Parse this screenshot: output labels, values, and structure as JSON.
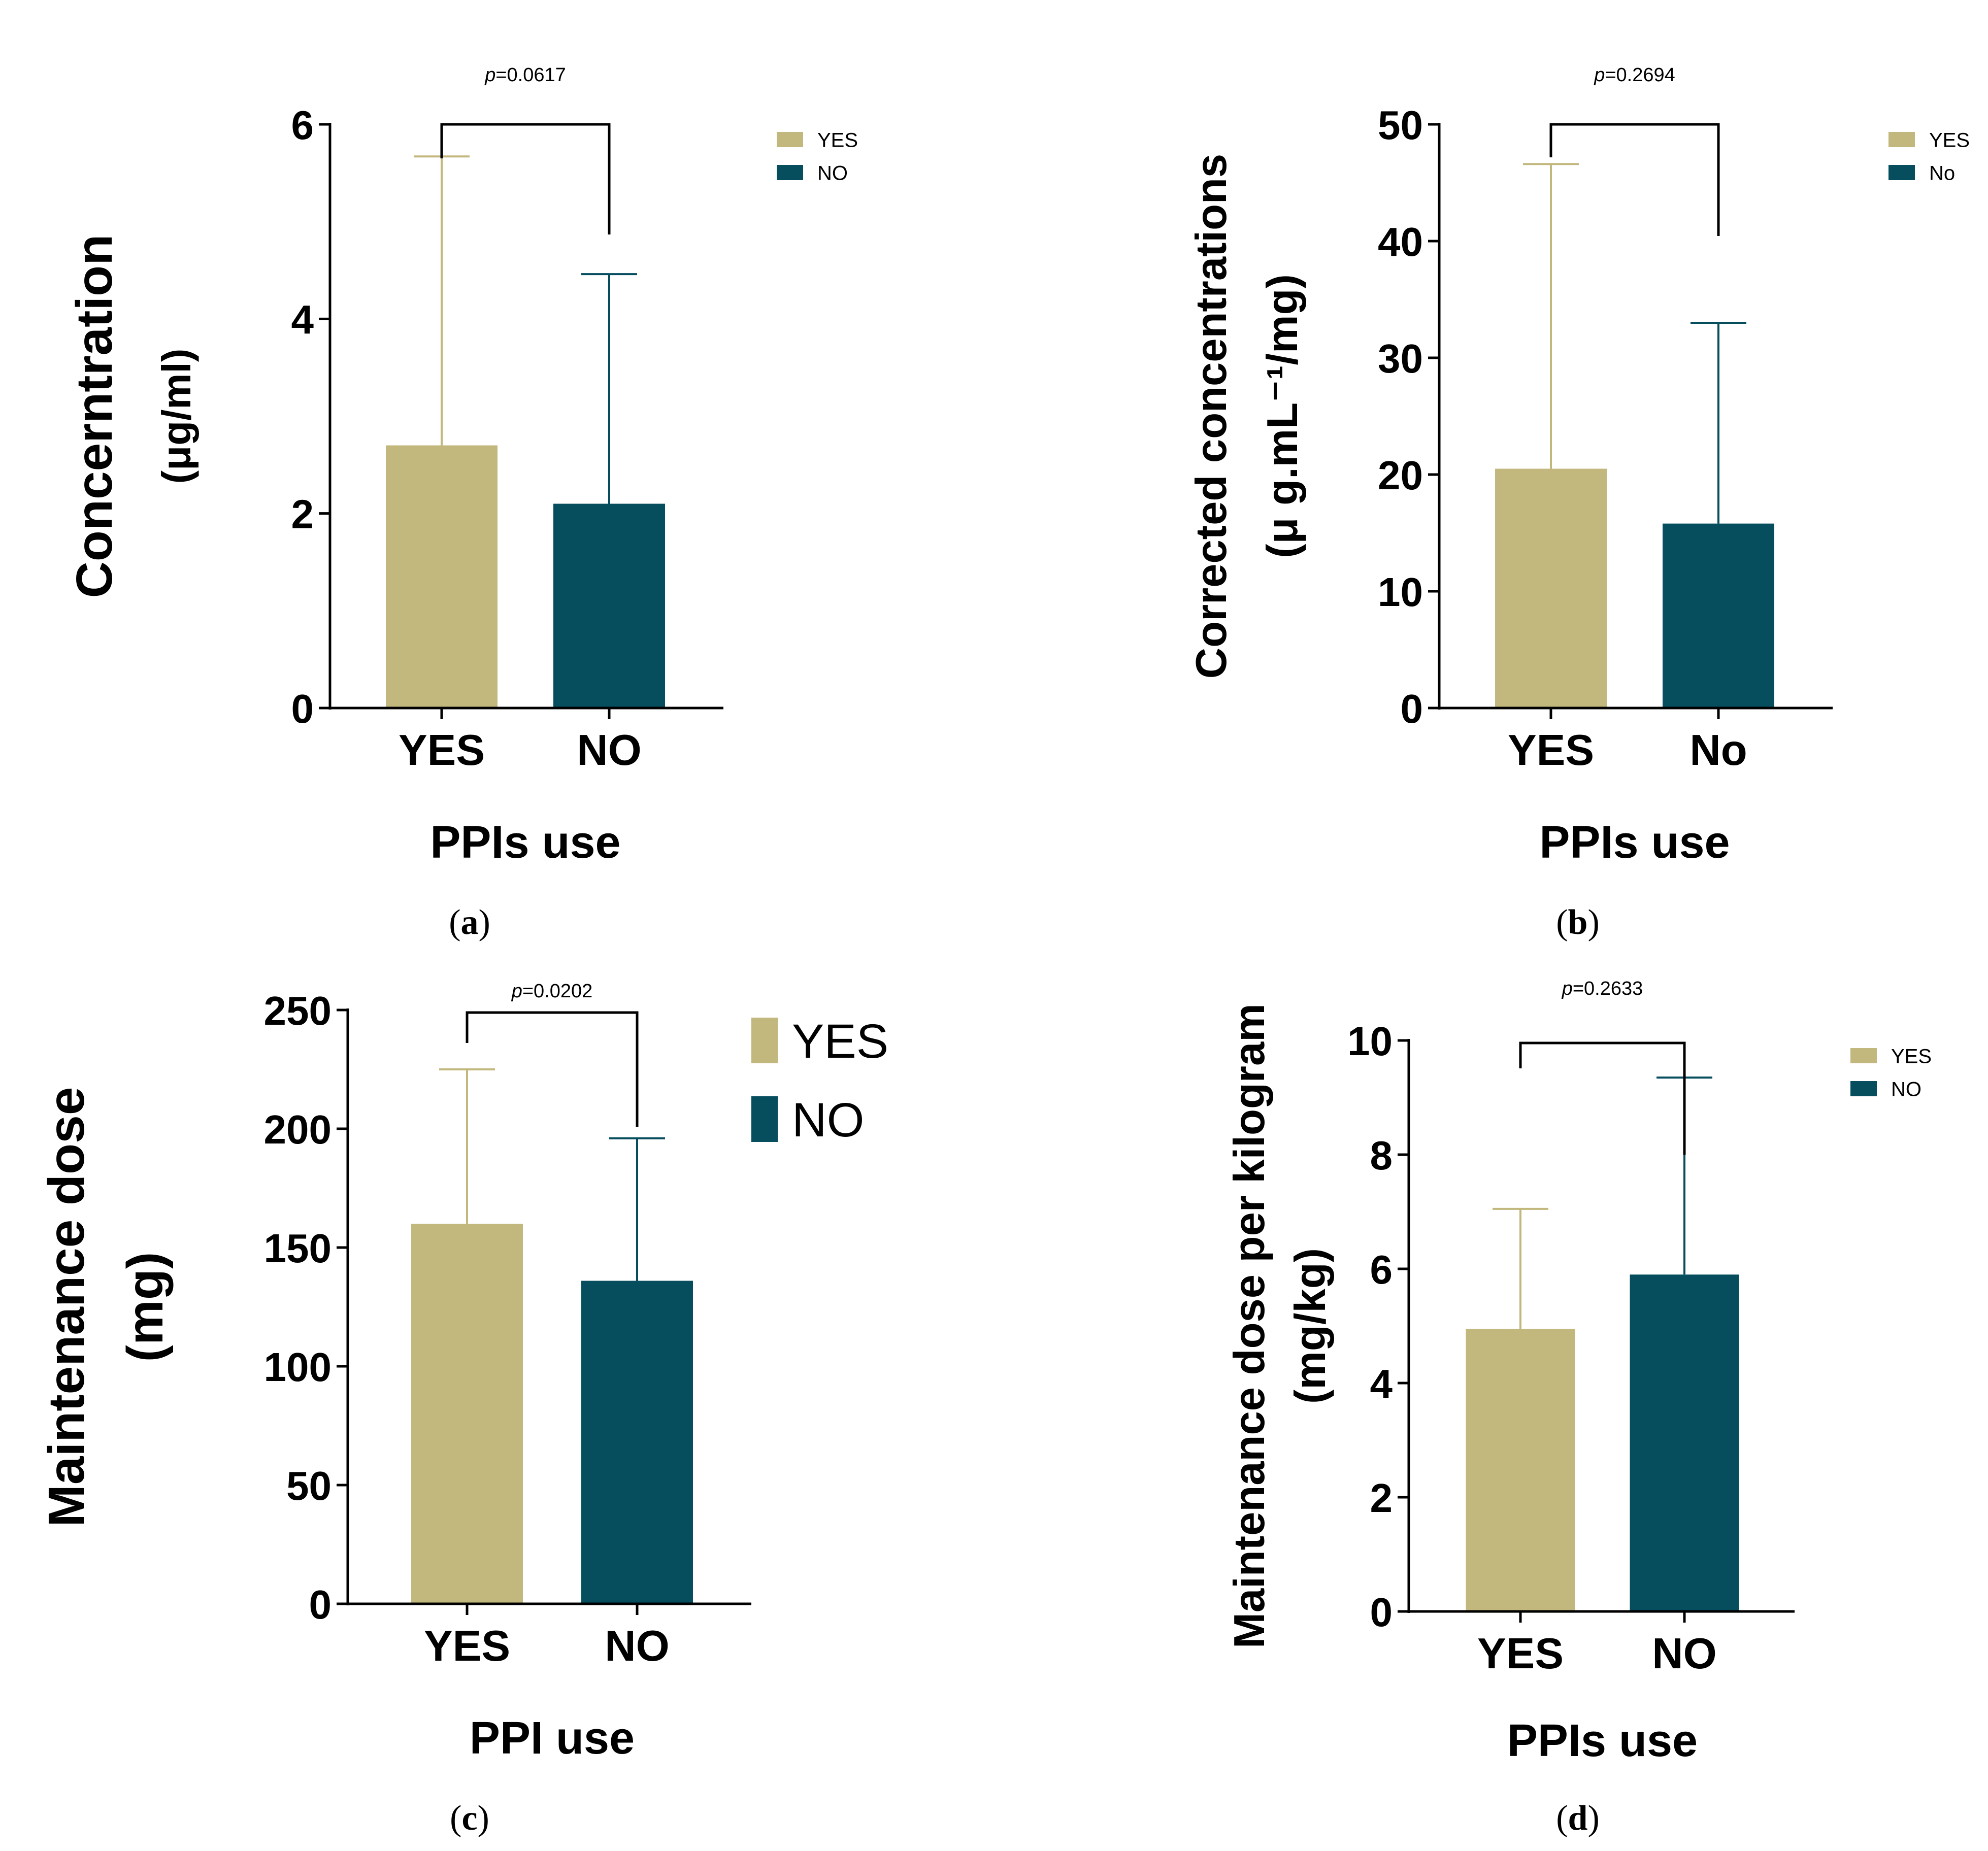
{
  "colors": {
    "yes": "#c2b77d",
    "no": "#064d5e",
    "axis": "#000000"
  },
  "chart_data": [
    {
      "id": "a",
      "type": "bar",
      "caption_label": "a",
      "title": "",
      "categories": [
        "YES",
        "NO"
      ],
      "values": [
        2.7,
        2.1
      ],
      "error_upper": [
        5.67,
        4.46
      ],
      "ylim": [
        0,
        6
      ],
      "yticks": [
        0,
        2,
        4,
        6
      ],
      "ytick_labels": [
        "0",
        "2",
        "4",
        "6"
      ],
      "xlabel": "PPIs use",
      "ylabel_lines": [
        "Concerntration",
        "(μg/ml)"
      ],
      "p_label": "=0.0617",
      "p_prefix": "p",
      "legend": [
        "YES",
        "NO"
      ],
      "legend_position": "top-right"
    },
    {
      "id": "b",
      "type": "bar",
      "caption_label": "b",
      "title": "",
      "categories": [
        "YES",
        "No"
      ],
      "values": [
        20.5,
        15.8
      ],
      "error_upper": [
        46.6,
        33.0
      ],
      "ylim": [
        0,
        50
      ],
      "yticks": [
        0,
        10,
        20,
        30,
        40,
        50
      ],
      "ytick_labels": [
        "0",
        "10",
        "20",
        "30",
        "40",
        "50"
      ],
      "xlabel": "PPIs use",
      "ylabel_lines": [
        "Corrected concentrations",
        "(μ g.mL⁻¹/mg)"
      ],
      "p_label": "=0.2694",
      "p_prefix": "p",
      "legend": [
        "YES",
        "No"
      ],
      "legend_position": "top-right"
    },
    {
      "id": "c",
      "type": "bar",
      "caption_label": "c",
      "title": "",
      "categories": [
        "YES",
        "NO"
      ],
      "values": [
        160,
        136
      ],
      "error_upper": [
        225,
        196
      ],
      "ylim": [
        0,
        250
      ],
      "yticks": [
        0,
        50,
        100,
        150,
        200,
        250
      ],
      "ytick_labels": [
        "0",
        "50",
        "100",
        "150",
        "200",
        "250"
      ],
      "xlabel": "PPI use",
      "ylabel_lines": [
        "Maintenance dose",
        "(mg)"
      ],
      "p_label": "=0.0202",
      "p_prefix": "p",
      "legend": [
        "YES",
        "NO"
      ],
      "legend_position": "top-right"
    },
    {
      "id": "d",
      "type": "bar",
      "caption_label": "d",
      "title": "",
      "categories": [
        "YES",
        "NO"
      ],
      "values": [
        4.95,
        5.9
      ],
      "error_upper": [
        7.05,
        9.35
      ],
      "ylim": [
        0,
        10
      ],
      "yticks": [
        0,
        2,
        4,
        6,
        8,
        10
      ],
      "ytick_labels": [
        "0",
        "2",
        "4",
        "6",
        "8",
        "10"
      ],
      "xlabel": "PPIs use",
      "ylabel_lines": [
        "Maintenance dose per kilogram",
        "(mg/kg)"
      ],
      "p_label": "=0.2633",
      "p_prefix": "p",
      "legend": [
        "YES",
        "NO"
      ],
      "legend_position": "top-right"
    }
  ]
}
